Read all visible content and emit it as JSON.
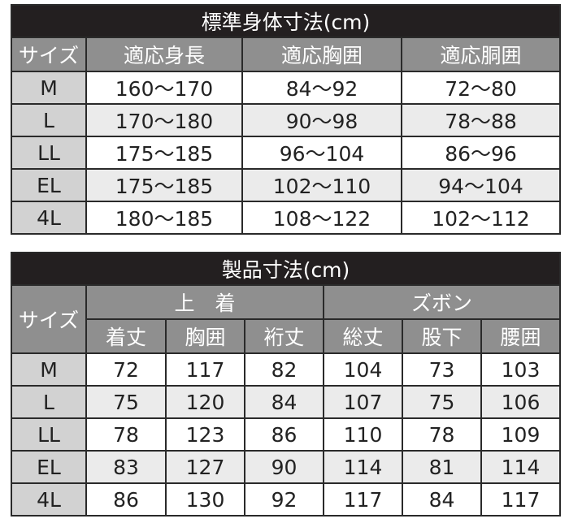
{
  "body_table": {
    "title": "標準身体寸法(cm)",
    "headers": [
      "サイズ",
      "適応身長",
      "適応胸囲",
      "適応胴囲"
    ],
    "rows": [
      [
        "M",
        "160〜170",
        "84〜92",
        "72〜80"
      ],
      [
        "L",
        "170〜180",
        "90〜98",
        "78〜88"
      ],
      [
        "LL",
        "175〜185",
        "96〜104",
        "86〜96"
      ],
      [
        "EL",
        "175〜185",
        "102〜110",
        "94〜104"
      ],
      [
        "4L",
        "180〜185",
        "108〜122",
        "102〜112"
      ]
    ]
  },
  "product_table": {
    "title": "製品寸法(cm)",
    "size_header": "サイズ",
    "groups": [
      "上　着",
      "ズボン"
    ],
    "headers": [
      "着丈",
      "胸囲",
      "裄丈",
      "総丈",
      "股下",
      "腰囲"
    ],
    "rows": [
      [
        "M",
        "72",
        "117",
        "82",
        "104",
        "73",
        "103"
      ],
      [
        "L",
        "75",
        "120",
        "84",
        "107",
        "75",
        "106"
      ],
      [
        "LL",
        "78",
        "123",
        "86",
        "110",
        "78",
        "109"
      ],
      [
        "EL",
        "83",
        "127",
        "90",
        "114",
        "81",
        "114"
      ],
      [
        "4L",
        "86",
        "130",
        "92",
        "117",
        "84",
        "117"
      ]
    ]
  },
  "colors": {
    "title_bg": "#231f20",
    "header_bg": "#8f8f8f",
    "size_bg": "#d2d2d2",
    "alt_row_bg": "#ebebeb"
  }
}
